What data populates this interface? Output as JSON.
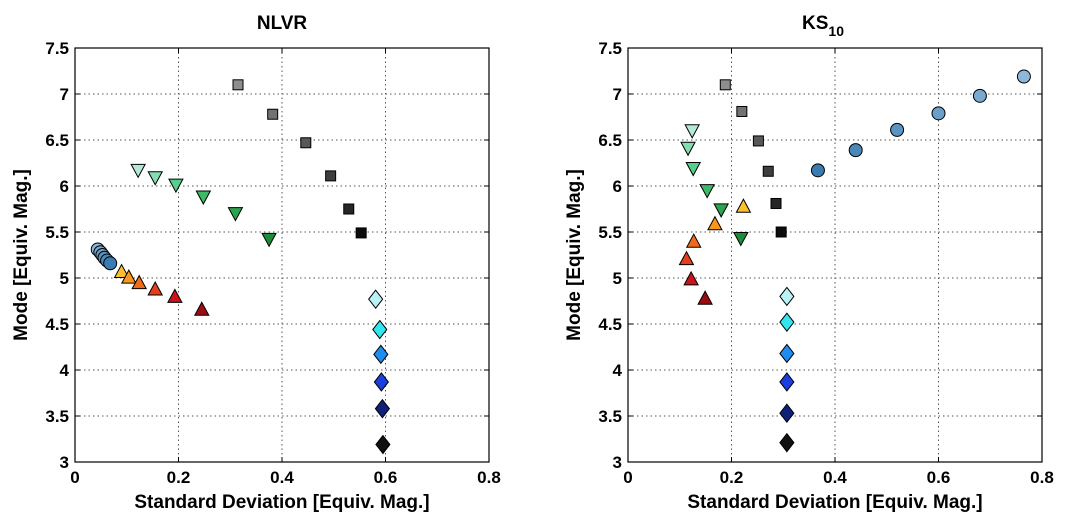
{
  "chart_data": [
    {
      "type": "scatter",
      "title": "NLVR",
      "title_sub": "",
      "xlabel": "Standard Deviation [Equiv. Mag.]",
      "ylabel": "Mode [Equiv. Mag.]",
      "xlim": [
        0,
        0.8
      ],
      "ylim": [
        3,
        7.5
      ],
      "xticks": [
        "0",
        "0.2",
        "0.4",
        "0.6",
        "0.8"
      ],
      "yticks": [
        "3",
        "3.5",
        "4",
        "4.5",
        "5",
        "5.5",
        "6",
        "6.5",
        "7",
        "7.5"
      ],
      "grid": true,
      "series": [
        {
          "marker": "square",
          "points": [
            {
              "x": 0.315,
              "y": 7.1,
              "color": "#8e8e8e"
            },
            {
              "x": 0.382,
              "y": 6.78,
              "color": "#727272"
            },
            {
              "x": 0.446,
              "y": 6.47,
              "color": "#585858"
            },
            {
              "x": 0.494,
              "y": 6.11,
              "color": "#3e3e3e"
            },
            {
              "x": 0.529,
              "y": 5.75,
              "color": "#262626"
            },
            {
              "x": 0.553,
              "y": 5.49,
              "color": "#0c0c0c"
            }
          ]
        },
        {
          "marker": "triangle-down",
          "points": [
            {
              "x": 0.122,
              "y": 6.17,
              "color": "#b6e8d6"
            },
            {
              "x": 0.155,
              "y": 6.09,
              "color": "#84ddb0"
            },
            {
              "x": 0.195,
              "y": 6.01,
              "color": "#55cf8b"
            },
            {
              "x": 0.248,
              "y": 5.88,
              "color": "#3cbb66"
            },
            {
              "x": 0.31,
              "y": 5.7,
              "color": "#2aa54d"
            },
            {
              "x": 0.375,
              "y": 5.42,
              "color": "#1d8c3a"
            }
          ]
        },
        {
          "marker": "circle",
          "points": [
            {
              "x": 0.044,
              "y": 5.31,
              "color": "#8fb7d9"
            },
            {
              "x": 0.049,
              "y": 5.28,
              "color": "#7aa9d0"
            },
            {
              "x": 0.053,
              "y": 5.25,
              "color": "#6a9fca"
            },
            {
              "x": 0.057,
              "y": 5.22,
              "color": "#5a94c2"
            },
            {
              "x": 0.062,
              "y": 5.19,
              "color": "#4a88ba"
            },
            {
              "x": 0.068,
              "y": 5.16,
              "color": "#3a7cb2"
            }
          ]
        },
        {
          "marker": "triangle-up",
          "points": [
            {
              "x": 0.09,
              "y": 5.07,
              "color": "#fdc02c"
            },
            {
              "x": 0.104,
              "y": 5.01,
              "color": "#f9961b"
            },
            {
              "x": 0.124,
              "y": 4.95,
              "color": "#f06a19"
            },
            {
              "x": 0.155,
              "y": 4.88,
              "color": "#e2401a"
            },
            {
              "x": 0.193,
              "y": 4.8,
              "color": "#c8141a"
            },
            {
              "x": 0.245,
              "y": 4.66,
              "color": "#9c0d12"
            }
          ]
        },
        {
          "marker": "diamond",
          "points": [
            {
              "x": 0.581,
              "y": 4.77,
              "color": "#b9f3f6"
            },
            {
              "x": 0.589,
              "y": 4.44,
              "color": "#33e5ef"
            },
            {
              "x": 0.591,
              "y": 4.17,
              "color": "#1f8cf0"
            },
            {
              "x": 0.592,
              "y": 3.87,
              "color": "#1a3fdf"
            },
            {
              "x": 0.594,
              "y": 3.58,
              "color": "#10207a"
            },
            {
              "x": 0.595,
              "y": 3.19,
              "color": "#111111"
            }
          ]
        }
      ]
    },
    {
      "type": "scatter",
      "title": "KS",
      "title_sub": "10",
      "xlabel": "Standard Deviation [Equiv. Mag.]",
      "ylabel": "Mode [Equiv. Mag.]",
      "xlim": [
        0,
        0.8
      ],
      "ylim": [
        3,
        7.5
      ],
      "xticks": [
        "0",
        "0.2",
        "0.4",
        "0.6",
        "0.8"
      ],
      "yticks": [
        "3",
        "3.5",
        "4",
        "4.5",
        "5",
        "5.5",
        "6",
        "6.5",
        "7",
        "7.5"
      ],
      "grid": true,
      "series": [
        {
          "marker": "square",
          "points": [
            {
              "x": 0.188,
              "y": 7.1,
              "color": "#8e8e8e"
            },
            {
              "x": 0.22,
              "y": 6.81,
              "color": "#727272"
            },
            {
              "x": 0.252,
              "y": 6.49,
              "color": "#585858"
            },
            {
              "x": 0.271,
              "y": 6.16,
              "color": "#3e3e3e"
            },
            {
              "x": 0.286,
              "y": 5.81,
              "color": "#262626"
            },
            {
              "x": 0.296,
              "y": 5.5,
              "color": "#0c0c0c"
            }
          ]
        },
        {
          "marker": "triangle-down",
          "points": [
            {
              "x": 0.124,
              "y": 6.6,
              "color": "#b6e8d6"
            },
            {
              "x": 0.116,
              "y": 6.41,
              "color": "#84ddb0"
            },
            {
              "x": 0.126,
              "y": 6.19,
              "color": "#55cf8b"
            },
            {
              "x": 0.153,
              "y": 5.95,
              "color": "#3cbb66"
            },
            {
              "x": 0.18,
              "y": 5.74,
              "color": "#2aa54d"
            },
            {
              "x": 0.218,
              "y": 5.43,
              "color": "#1d8c3a"
            }
          ]
        },
        {
          "marker": "circle",
          "points": [
            {
              "x": 0.765,
              "y": 7.19,
              "color": "#8fb7d9"
            },
            {
              "x": 0.68,
              "y": 6.98,
              "color": "#7aa9d0"
            },
            {
              "x": 0.6,
              "y": 6.79,
              "color": "#6a9fca"
            },
            {
              "x": 0.52,
              "y": 6.61,
              "color": "#5a94c2"
            },
            {
              "x": 0.44,
              "y": 6.39,
              "color": "#4a88ba"
            },
            {
              "x": 0.367,
              "y": 6.17,
              "color": "#3a7cb2"
            }
          ]
        },
        {
          "marker": "triangle-up",
          "points": [
            {
              "x": 0.223,
              "y": 5.78,
              "color": "#fdc02c"
            },
            {
              "x": 0.168,
              "y": 5.59,
              "color": "#f9961b"
            },
            {
              "x": 0.127,
              "y": 5.4,
              "color": "#f06a19"
            },
            {
              "x": 0.113,
              "y": 5.21,
              "color": "#e2401a"
            },
            {
              "x": 0.122,
              "y": 4.99,
              "color": "#c8141a"
            },
            {
              "x": 0.149,
              "y": 4.78,
              "color": "#9c0d12"
            }
          ]
        },
        {
          "marker": "diamond",
          "points": [
            {
              "x": 0.307,
              "y": 4.8,
              "color": "#b9f3f6"
            },
            {
              "x": 0.307,
              "y": 4.52,
              "color": "#33e5ef"
            },
            {
              "x": 0.307,
              "y": 4.18,
              "color": "#1f8cf0"
            },
            {
              "x": 0.307,
              "y": 3.87,
              "color": "#1a3fdf"
            },
            {
              "x": 0.307,
              "y": 3.53,
              "color": "#10207a"
            },
            {
              "x": 0.307,
              "y": 3.21,
              "color": "#111111"
            }
          ]
        }
      ]
    }
  ]
}
